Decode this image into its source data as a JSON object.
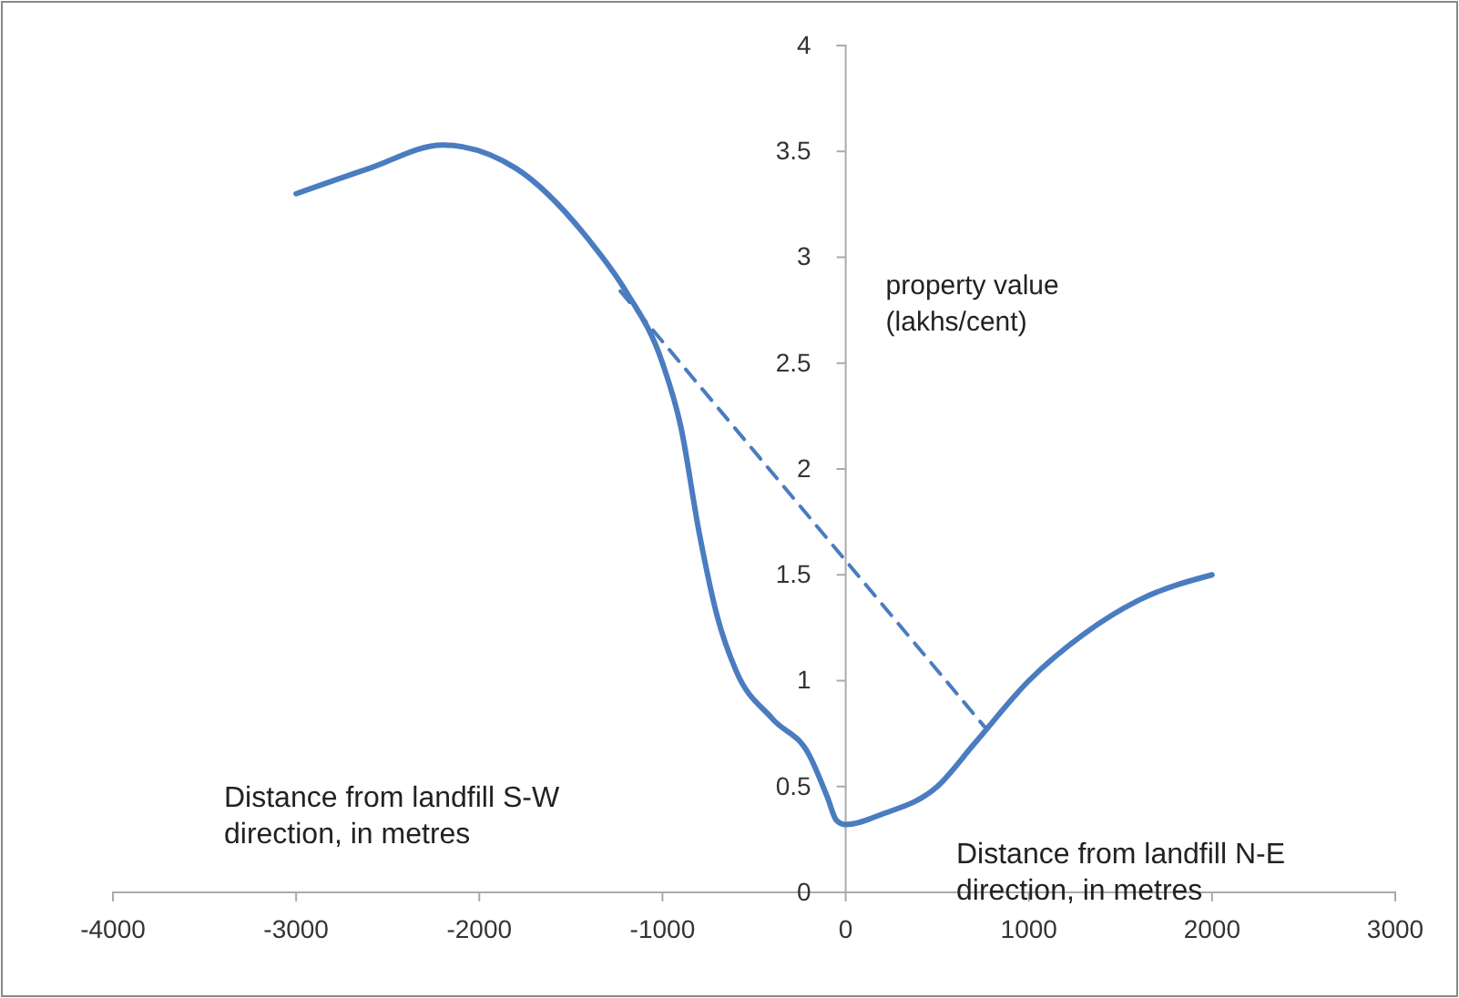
{
  "chart_data": {
    "type": "line",
    "ylabel": "property value (lakhs/cent)",
    "xlim": [
      -4000,
      3000
    ],
    "xticks": [
      -4000,
      -3000,
      -2000,
      -1000,
      0,
      1000,
      2000,
      3000
    ],
    "ylim": [
      0,
      4
    ],
    "yticks": [
      0,
      0.5,
      1,
      1.5,
      2,
      2.5,
      3,
      3.5,
      4
    ],
    "grid": false,
    "marker": "none",
    "annotations": [
      "Distance from landfill S-W direction, in metres",
      "Distance from landfill N-E direction, in metres"
    ],
    "series": [
      {
        "color": "#4a7cc0",
        "line_style": "solid",
        "x": [
          -3000,
          -2600,
          -2200,
          -1800,
          -1400,
          -1200,
          -1000,
          -900,
          -800,
          -700,
          -600,
          -400,
          -200,
          -100,
          -50,
          0,
          200,
          500,
          700,
          1000,
          1300,
          1600,
          2000
        ],
        "values": [
          3.3,
          3.42,
          3.53,
          3.42,
          3.08,
          2.84,
          2.5,
          2.2,
          1.7,
          1.3,
          1.05,
          0.82,
          0.65,
          0.45,
          0.34,
          0.32,
          0.37,
          0.5,
          0.7,
          1.0,
          1.22,
          1.38,
          1.5
        ]
      },
      {
        "color": "#4a7cc0",
        "line_style": "dashed",
        "x": [
          -1230,
          760
        ],
        "values": [
          2.84,
          0.78
        ]
      }
    ]
  }
}
